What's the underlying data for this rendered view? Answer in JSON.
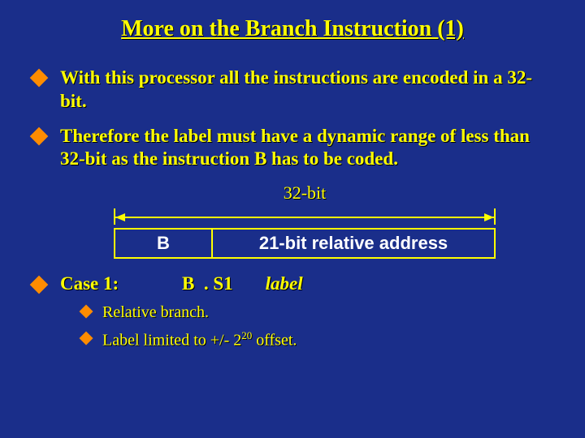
{
  "title": "More on the Branch Instruction (1)",
  "bullets": [
    "With this processor all the instructions are encoded in a 32-bit.",
    "Therefore the label must have a dynamic range of less than 32-bit as the instruction B has to be coded."
  ],
  "diagram": {
    "dim_label": "32-bit",
    "box1": "B",
    "box2": "21-bit relative address"
  },
  "case": {
    "label": "Case 1:",
    "opcode": "B",
    "suffix": ". S1",
    "operand": "label"
  },
  "subbullets": {
    "a": "Relative branch.",
    "b_pre": "Label limited to +/- 2",
    "b_sup": "20",
    "b_post": " offset."
  },
  "colors": {
    "background": "#1a2e8a",
    "text": "#ffff00",
    "bullet": "#ff8c00",
    "box_text": "#ffffff"
  }
}
